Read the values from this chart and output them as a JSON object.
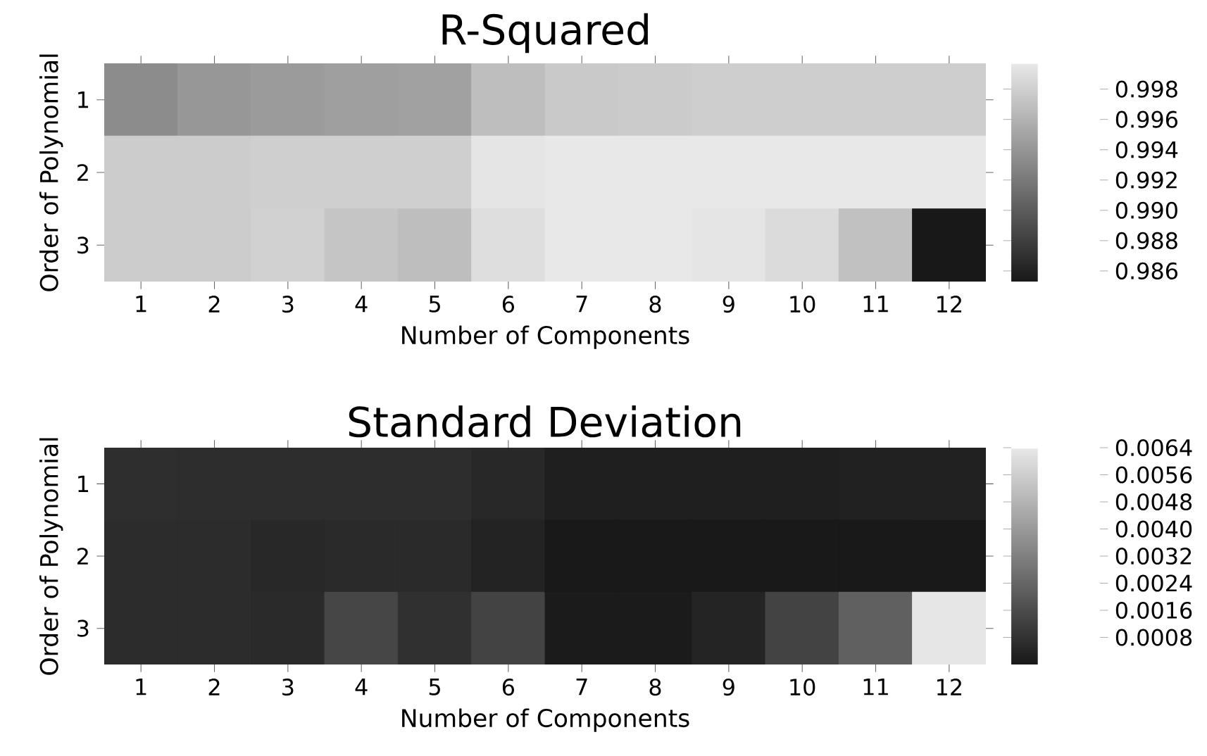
{
  "chart_data": [
    {
      "type": "heatmap",
      "title": "R-Squared",
      "xlabel": "Number of Components",
      "ylabel": "Order of Polynomial",
      "categories": [
        "1",
        "2",
        "3",
        "4",
        "5",
        "6",
        "7",
        "8",
        "9",
        "10",
        "11",
        "12"
      ],
      "y_categories": [
        "1",
        "2",
        "3"
      ],
      "cells": [
        [
          0.9933,
          0.994,
          0.9943,
          0.9946,
          0.9947,
          0.9967,
          0.9975,
          0.9976,
          0.9978,
          0.9978,
          0.9978,
          0.9978
        ],
        [
          0.9977,
          0.9977,
          0.9979,
          0.9979,
          0.9979,
          0.9994,
          0.9997,
          0.9997,
          0.9997,
          0.9997,
          0.9997,
          0.9997
        ],
        [
          0.9977,
          0.9977,
          0.998,
          0.9972,
          0.9967,
          0.9989,
          0.9996,
          0.9996,
          0.9994,
          0.9987,
          0.9969,
          0.9853
        ]
      ],
      "clim": [
        0.9853,
        0.9997
      ],
      "cticks": [
        0.986,
        0.988,
        {
          "value": 0.99,
          "label": "0.990"
        },
        0.992,
        0.994,
        0.996,
        0.998
      ]
    },
    {
      "type": "heatmap",
      "title": "Standard Deviation",
      "xlabel": "Number of Components",
      "ylabel": "Order of Polynomial",
      "categories": [
        "1",
        "2",
        "3",
        "4",
        "5",
        "6",
        "7",
        "8",
        "9",
        "10",
        "11",
        "12"
      ],
      "y_categories": [
        "1",
        "2",
        "3"
      ],
      "cells": [
        [
          0.00067,
          0.00064,
          0.00064,
          0.00064,
          0.00064,
          0.00048,
          0.00021,
          0.00021,
          0.00021,
          0.00021,
          0.00027,
          0.00027
        ],
        [
          0.00061,
          0.00061,
          0.00048,
          0.00055,
          0.00055,
          0.00033,
          3e-05,
          3e-05,
          3e-05,
          3e-05,
          3e-05,
          3e-05
        ],
        [
          0.00061,
          0.00061,
          0.00055,
          0.0014,
          0.00073,
          0.0013,
          0.0001,
          0.0001,
          0.00036,
          0.0013,
          0.0022,
          0.0063
        ]
      ],
      "clim": [
        0.0,
        0.0064
      ],
      "cticks": [
        0.0008,
        0.0016,
        0.0024,
        0.0032,
        {
          "value": 0.004,
          "label": "0.0040"
        },
        0.0048,
        0.0056,
        0.0064
      ]
    }
  ]
}
